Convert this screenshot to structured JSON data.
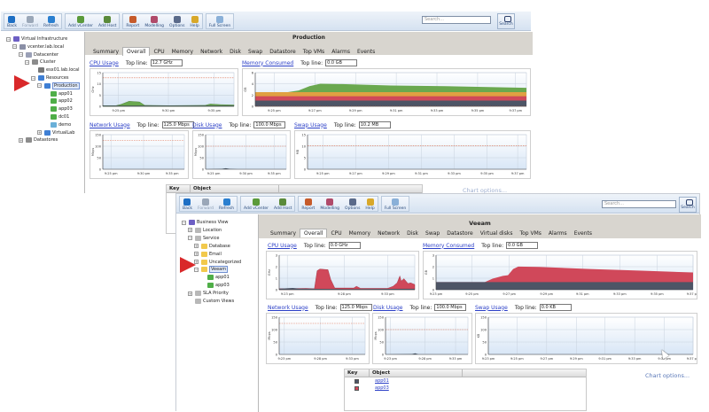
{
  "toolbar": {
    "buttons": [
      {
        "label": "Back",
        "icon": "back-arrow-icon",
        "enabled": true
      },
      {
        "label": "Forward",
        "icon": "forward-arrow-icon",
        "enabled": false
      },
      {
        "label": "Refresh",
        "icon": "refresh-icon",
        "enabled": true
      },
      {
        "label": "Add vCenter",
        "icon": "add-vcenter-icon",
        "enabled": true
      },
      {
        "label": "Add Host",
        "icon": "add-host-icon",
        "enabled": true
      },
      {
        "label": "Report",
        "icon": "report-icon",
        "enabled": true
      },
      {
        "label": "Modelling",
        "icon": "modelling-icon",
        "enabled": true
      },
      {
        "label": "Options",
        "icon": "options-icon",
        "enabled": true
      },
      {
        "label": "Help",
        "icon": "help-icon",
        "enabled": true
      },
      {
        "label": "Full Screen",
        "icon": "full-screen-icon",
        "enabled": true
      }
    ],
    "search_placeholder": "Search...",
    "search_button": "Search"
  },
  "window1": {
    "title": "Production",
    "tree": [
      {
        "label": "Virtual Infrastructure",
        "indent": 0,
        "exp": "−",
        "icon": "virtual-infrastructure-icon",
        "color": "#6d5fc4"
      },
      {
        "label": "vcenter.lab.local",
        "indent": 1,
        "exp": "−",
        "icon": "vcenter-icon",
        "color": "#8a8fa6"
      },
      {
        "label": "Datacenter",
        "indent": 2,
        "exp": "−",
        "icon": "datacenter-icon",
        "color": "#9aa0b6"
      },
      {
        "label": "Cluster",
        "indent": 3,
        "exp": "−",
        "icon": "cluster-icon",
        "color": "#8c8c8c"
      },
      {
        "label": "esx01.lab.local",
        "indent": 4,
        "exp": "",
        "icon": "host-icon",
        "color": "#777"
      },
      {
        "label": "Resources",
        "indent": 4,
        "exp": "−",
        "icon": "resource-pool-icon",
        "color": "#3f7fd4"
      },
      {
        "label": "Production",
        "indent": 5,
        "exp": "−",
        "icon": "resource-pool-icon",
        "color": "#3f7fd4",
        "selected": true
      },
      {
        "label": "app01",
        "indent": 6,
        "exp": "",
        "icon": "vm-icon",
        "color": "#4fae48"
      },
      {
        "label": "app02",
        "indent": 6,
        "exp": "",
        "icon": "vm-icon",
        "color": "#4fae48"
      },
      {
        "label": "app03",
        "indent": 6,
        "exp": "",
        "icon": "vm-icon",
        "color": "#4fae48"
      },
      {
        "label": "dc01",
        "indent": 6,
        "exp": "",
        "icon": "vm-icon",
        "color": "#4fae48"
      },
      {
        "label": "demo",
        "indent": 6,
        "exp": "",
        "icon": "vm-icon",
        "color": "#6ab0d8"
      },
      {
        "label": "VirtualLab",
        "indent": 5,
        "exp": "+",
        "icon": "resource-pool-icon",
        "color": "#3f7fd4"
      },
      {
        "label": "Datastores",
        "indent": 2,
        "exp": "+",
        "icon": "datastores-icon",
        "color": "#8c8c8c"
      }
    ],
    "tabs": [
      "Summary",
      "Overall",
      "CPU",
      "Memory",
      "Network",
      "Disk",
      "Swap",
      "Datastore",
      "Top VMs",
      "Alarms",
      "Events"
    ],
    "active_tab": "Overall",
    "panels": {
      "cpu": {
        "link": "CPU Usage",
        "top_line_label": "Top line:",
        "top_line": "12.7 GHz",
        "unit": "GHz",
        "yticks": [
          "15",
          "10",
          "5",
          "0"
        ],
        "xticks": [
          "9:25 pm",
          "9:30 pm",
          "9:35 pm"
        ]
      },
      "memory": {
        "link": "Memory Consumed",
        "top_line_label": "Top line:",
        "top_line": "0.0 GB",
        "unit": "GB",
        "yticks": [
          "6",
          "4",
          "2",
          "0"
        ],
        "xticks": [
          "9:25 pm",
          "9:27 pm",
          "9:29 pm",
          "9:31 pm",
          "9:33 pm",
          "9:35 pm",
          "9:37 pm"
        ]
      },
      "network": {
        "link": "Network Usage",
        "top_line_label": "Top line:",
        "top_line": "125.0 Mbps",
        "unit": "Mbps",
        "yticks": [
          "150",
          "100",
          "50",
          "0"
        ],
        "xticks": [
          "9:25 pm",
          "9:30 pm",
          "9:35 pm"
        ]
      },
      "disk": {
        "link": "Disk Usage",
        "top_line_label": "Top line:",
        "top_line": "100.0 Mbps",
        "unit": "Mbps",
        "yticks": [
          "150",
          "100",
          "50",
          "0"
        ],
        "xticks": [
          "9:25 pm",
          "9:30 pm",
          "9:35 pm"
        ]
      },
      "swap": {
        "link": "Swap Usage",
        "top_line_label": "Top line:",
        "top_line": "10.2 MB",
        "unit": "MB",
        "yticks": [
          "15",
          "10",
          "5",
          "0"
        ],
        "xticks": [
          "9:25 pm",
          "9:27 pm",
          "9:29 pm",
          "9:31 pm",
          "9:33 pm",
          "9:35 pm",
          "9:37 pm"
        ]
      }
    },
    "key": {
      "header_key": "Key",
      "header_object": "Object",
      "swatches": [
        "#4d5566",
        "#d0485a",
        "#e0a042",
        "#6aa84f"
      ]
    },
    "chart_options": "Chart options..."
  },
  "window2": {
    "title": "Veeam",
    "tree": [
      {
        "label": "Business View",
        "indent": 0,
        "exp": "−",
        "icon": "business-view-icon",
        "color": "#6d5fc4"
      },
      {
        "label": "Location",
        "indent": 1,
        "exp": "+",
        "icon": "category-icon",
        "color": "#b8b8b8"
      },
      {
        "label": "Service",
        "indent": 1,
        "exp": "−",
        "icon": "category-icon",
        "color": "#b8b8b8"
      },
      {
        "label": "Database",
        "indent": 2,
        "exp": "+",
        "icon": "folder-icon",
        "color": "#f2c94c"
      },
      {
        "label": "Email",
        "indent": 2,
        "exp": "+",
        "icon": "folder-icon",
        "color": "#f2c94c"
      },
      {
        "label": "Uncategorized",
        "indent": 2,
        "exp": "+",
        "icon": "folder-icon",
        "color": "#f2c94c"
      },
      {
        "label": "Veeam",
        "indent": 2,
        "exp": "−",
        "icon": "folder-icon",
        "color": "#f2c94c",
        "selected": true
      },
      {
        "label": "app01",
        "indent": 3,
        "exp": "",
        "icon": "vm-icon",
        "color": "#4fae48"
      },
      {
        "label": "app03",
        "indent": 3,
        "exp": "",
        "icon": "vm-icon",
        "color": "#4fae48"
      },
      {
        "label": "SLA Priority",
        "indent": 1,
        "exp": "+",
        "icon": "category-icon",
        "color": "#b8b8b8"
      },
      {
        "label": "Custom Views",
        "indent": 1,
        "exp": "",
        "icon": "custom-views-icon",
        "color": "#b8b8b8"
      }
    ],
    "tabs": [
      "Summary",
      "Overall",
      "CPU",
      "Memory",
      "Network",
      "Disk",
      "Swap",
      "Datastore",
      "Virtual disks",
      "Top VMs",
      "Alarms",
      "Events"
    ],
    "active_tab": "Overall",
    "panels": {
      "cpu": {
        "link": "CPU Usage",
        "top_line_label": "Top line:",
        "top_line": "0.0 GHz",
        "unit": "GHz",
        "yticks": [
          "3",
          "2",
          "1",
          "0"
        ],
        "xticks": [
          "9:23 pm",
          "9:28 pm",
          "9:33 pm"
        ]
      },
      "memory": {
        "link": "Memory Consumed",
        "top_line_label": "Top line:",
        "top_line": "0.0 GB",
        "unit": "GB",
        "yticks": [
          "3",
          "2",
          "1",
          "0"
        ],
        "xticks": [
          "9:23 pm",
          "9:25 pm",
          "9:27 pm",
          "9:29 pm",
          "9:31 pm",
          "9:33 pm",
          "9:35 pm",
          "9:37 pm"
        ]
      },
      "network": {
        "link": "Network Usage",
        "top_line_label": "Top line:",
        "top_line": "125.0 Mbps",
        "unit": "Mbps",
        "yticks": [
          "150",
          "100",
          "50",
          "0"
        ],
        "xticks": [
          "9:23 pm",
          "9:28 pm",
          "9:33 pm"
        ]
      },
      "disk": {
        "link": "Disk Usage",
        "top_line_label": "Top line:",
        "top_line": "100.0 Mbps",
        "unit": "Mbps",
        "yticks": [
          "150",
          "100",
          "50",
          "0"
        ],
        "xticks": [
          "9:23 pm",
          "9:28 pm",
          "9:33 pm"
        ]
      },
      "swap": {
        "link": "Swap Usage",
        "top_line_label": "Top line:",
        "top_line": "0.0 KB",
        "unit": "KB",
        "yticks": [
          "150",
          "100",
          "50",
          "0"
        ],
        "xticks": [
          "9:23 pm",
          "9:25 pm",
          "9:27 pm",
          "9:29 pm",
          "9:31 pm",
          "9:33 pm",
          "9:35 pm",
          "9:37 pm"
        ]
      }
    },
    "key": {
      "header_key": "Key",
      "header_object": "Object",
      "rows": [
        {
          "color": "#4d5566",
          "object": "app01"
        },
        {
          "color": "#d0485a",
          "object": "app03"
        }
      ]
    },
    "chart_options": "Chart options..."
  }
}
